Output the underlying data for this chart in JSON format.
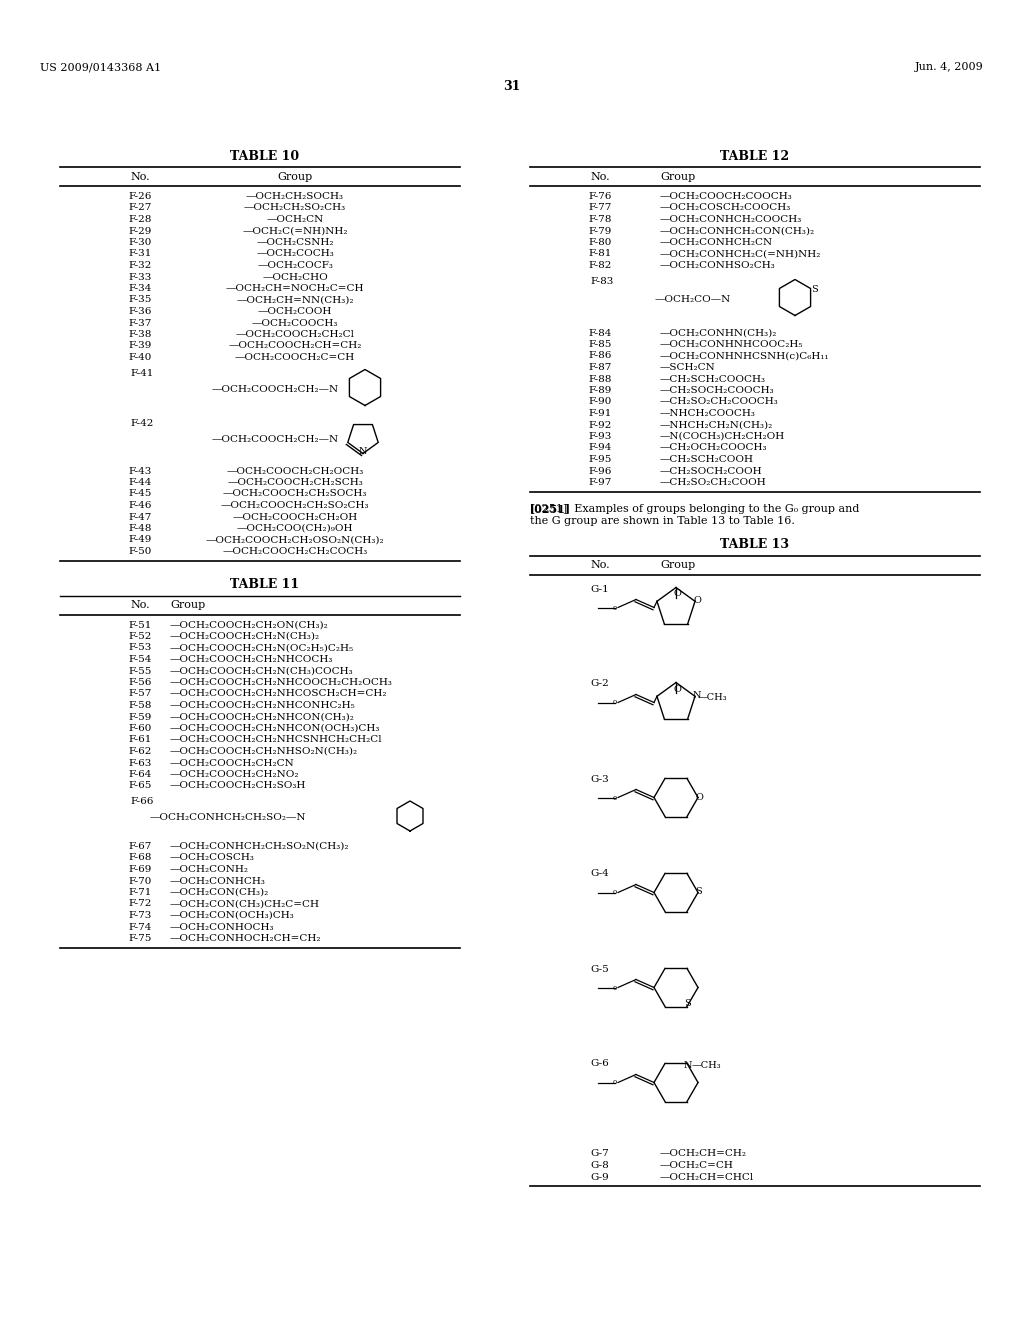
{
  "title": "31",
  "header_left": "US 2009/0143368 A1",
  "header_right": "Jun. 4, 2009",
  "table10_title": "TABLE 10",
  "table11_title": "TABLE 11",
  "table12_title": "TABLE 12",
  "table13_title": "TABLE 13",
  "table10_rows": [
    [
      "F-26",
      "—OCH₂CH₂SOCH₃"
    ],
    [
      "F-27",
      "—OCH₂CH₂SO₂CH₃"
    ],
    [
      "F-28",
      "—OCH₂CN"
    ],
    [
      "F-29",
      "—OCH₂C(=NH)NH₂"
    ],
    [
      "F-30",
      "—OCH₂CSNH₂"
    ],
    [
      "F-31",
      "—OCH₂COCH₃"
    ],
    [
      "F-32",
      "—OCH₂COCF₃"
    ],
    [
      "F-33",
      "—OCH₂CHO"
    ],
    [
      "F-34",
      "—OCH₂CH=NOCH₂C=CH"
    ],
    [
      "F-35",
      "—OCH₂CH=NN(CH₃)₂"
    ],
    [
      "F-36",
      "—OCH₂COOH"
    ],
    [
      "F-37",
      "—OCH₂COOCH₃"
    ],
    [
      "F-38",
      "—OCH₂COOCH₂CH₂Cl"
    ],
    [
      "F-39",
      "—OCH₂COOCH₂CH=CH₂"
    ],
    [
      "F-40",
      "—OCH₂COOCH₂C=CH"
    ]
  ],
  "table11_rows": [
    [
      "F-51",
      "—OCH₂COOCH₂CH₂ON(CH₃)₂"
    ],
    [
      "F-52",
      "—OCH₂COOCH₂CH₂N(CH₃)₂"
    ],
    [
      "F-53",
      "—OCH₂COOCH₂CH₂N(OC₂H₅)C₂H₅"
    ],
    [
      "F-54",
      "—OCH₂COOCH₂CH₂NHCOCH₃"
    ],
    [
      "F-55",
      "—OCH₂COOCH₂CH₂N(CH₃)COCH₃"
    ],
    [
      "F-56",
      "—OCH₂COOCH₂CH₂NHCOOCH₂CH₂OCH₃"
    ],
    [
      "F-57",
      "—OCH₂COOCH₂CH₂NHCOSCH₂CH=CH₂"
    ],
    [
      "F-58",
      "—OCH₂COOCH₂CH₂NHCONHC₂H₅"
    ],
    [
      "F-59",
      "—OCH₂COOCH₂CH₂NHCON(CH₃)₂"
    ],
    [
      "F-60",
      "—OCH₂COOCH₂CH₂NHCON(OCH₃)CH₃"
    ],
    [
      "F-61",
      "—OCH₂COOCH₂CH₂NHCSNHCH₂CH₂Cl"
    ],
    [
      "F-62",
      "—OCH₂COOCH₂CH₂NHSO₂N(CH₃)₂"
    ],
    [
      "F-63",
      "—OCH₂COOCH₂CH₂CN"
    ],
    [
      "F-64",
      "—OCH₂COOCH₂CH₂NO₂"
    ],
    [
      "F-65",
      "—OCH₂COOCH₂CH₂SO₃H"
    ]
  ],
  "table11_rows_after": [
    [
      "F-67",
      "—OCH₂CONHCH₂CH₂SO₂N(CH₃)₂"
    ],
    [
      "F-68",
      "—OCH₂COSCH₃"
    ],
    [
      "F-69",
      "—OCH₂CONH₂"
    ],
    [
      "F-70",
      "—OCH₂CONHCH₃"
    ],
    [
      "F-71",
      "—OCH₂CON(CH₃)₂"
    ],
    [
      "F-72",
      "—OCH₂CON(CH₃)CH₂C=CH"
    ],
    [
      "F-73",
      "—OCH₂CON(OCH₃)CH₃"
    ],
    [
      "F-74",
      "—OCH₂CONHOCH₃"
    ],
    [
      "F-75",
      "—OCH₂CONHOCH₂CH=CH₂"
    ]
  ],
  "table12_rows_before": [
    [
      "F-76",
      "—OCH₂COOCH₂COOCH₃"
    ],
    [
      "F-77",
      "—OCH₂COSCH₂COOCH₃"
    ],
    [
      "F-78",
      "—OCH₂CONHCH₂COOCH₃"
    ],
    [
      "F-79",
      "—OCH₂CONHCH₂CON(CH₃)₂"
    ],
    [
      "F-80",
      "—OCH₂CONHCH₂CN"
    ],
    [
      "F-81",
      "—OCH₂CONHCH₂C(=NH)NH₂"
    ],
    [
      "F-82",
      "—OCH₂CONHSO₂CH₃"
    ]
  ],
  "table12_rows_after": [
    [
      "F-84",
      "—OCH₂CONHN(CH₃)₂"
    ],
    [
      "F-85",
      "—OCH₂CONHNHCOOC₂H₅"
    ],
    [
      "F-86",
      "—OCH₂CONHNHCSNH(c)C₆H₁₁"
    ],
    [
      "F-87",
      "—SCH₂CN"
    ],
    [
      "F-88",
      "—CH₂SCH₂COOCH₃"
    ],
    [
      "F-89",
      "—CH₂SOCH₂COOCH₃"
    ],
    [
      "F-90",
      "—CH₂SO₂CH₂COOCH₃"
    ],
    [
      "F-91",
      "—NHCH₂COOCH₃"
    ],
    [
      "F-92",
      "—NHCH₂CH₂N(CH₃)₂"
    ],
    [
      "F-93",
      "—N(COCH₃)CH₂CH₂OH"
    ],
    [
      "F-94",
      "—CH₂OCH₂COOCH₃"
    ],
    [
      "F-95",
      "—CH₂SCH₂COOH"
    ],
    [
      "F-96",
      "—CH₂SOCH₂COOH"
    ],
    [
      "F-97",
      "—CH₂SO₂CH₂COOH"
    ]
  ],
  "table13_rows_after": [
    [
      "G-7",
      "—OCH₂CH=CH₂"
    ],
    [
      "G-8",
      "—OCH₂C=CH"
    ],
    [
      "G-9",
      "—OCH₂CH=CHCl"
    ]
  ],
  "paragraph_text1": "[0251]  Examples of groups belonging to the G₀ group and",
  "paragraph_text2": "the G group are shown in Table 13 to Table 16."
}
